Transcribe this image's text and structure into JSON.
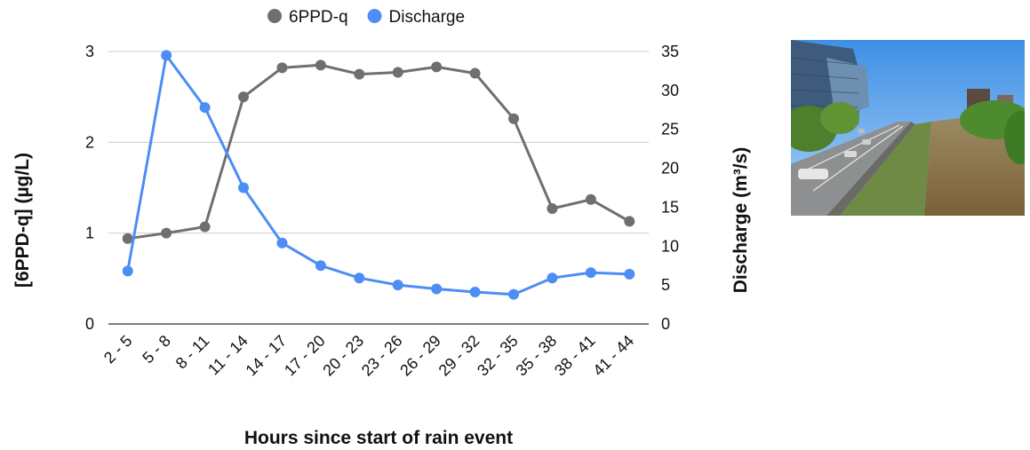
{
  "chart_data": {
    "type": "line",
    "categories": [
      "2 - 5",
      "5 - 8",
      "8 - 11",
      "11 - 14",
      "14 - 17",
      "17 - 20",
      "20 - 23",
      "23 - 26",
      "26 - 29",
      "29 - 32",
      "32 - 35",
      "35 - 38",
      "38 - 41",
      "41 - 44"
    ],
    "series": [
      {
        "name": "6PPD-q",
        "axis": "left",
        "color": "#6f6f6f",
        "values": [
          0.94,
          1.0,
          1.07,
          2.5,
          2.82,
          2.85,
          2.75,
          2.77,
          2.83,
          2.76,
          2.26,
          1.27,
          1.37,
          1.13
        ]
      },
      {
        "name": "Discharge",
        "axis": "right",
        "color": "#4c8df6",
        "values": [
          6.8,
          34.5,
          27.8,
          17.5,
          10.4,
          7.5,
          5.9,
          5.0,
          4.5,
          4.1,
          3.8,
          5.9,
          6.6,
          6.4
        ]
      }
    ],
    "xlabel": "Hours since start of rain event",
    "ylabel_left": "[6PPD-q] (µg/L)",
    "ylabel_right": "Discharge (m³/s)",
    "ylim_left": [
      0,
      3
    ],
    "ylim_right": [
      0,
      35
    ],
    "yticks_left": [
      "0",
      "1",
      "2",
      "3"
    ],
    "yticks_right": [
      "0",
      "5",
      "10",
      "15",
      "20",
      "25",
      "30",
      "35"
    ],
    "grid": true,
    "legend_position": "top-center"
  },
  "photo": {
    "icon": "highway-river-photo"
  }
}
